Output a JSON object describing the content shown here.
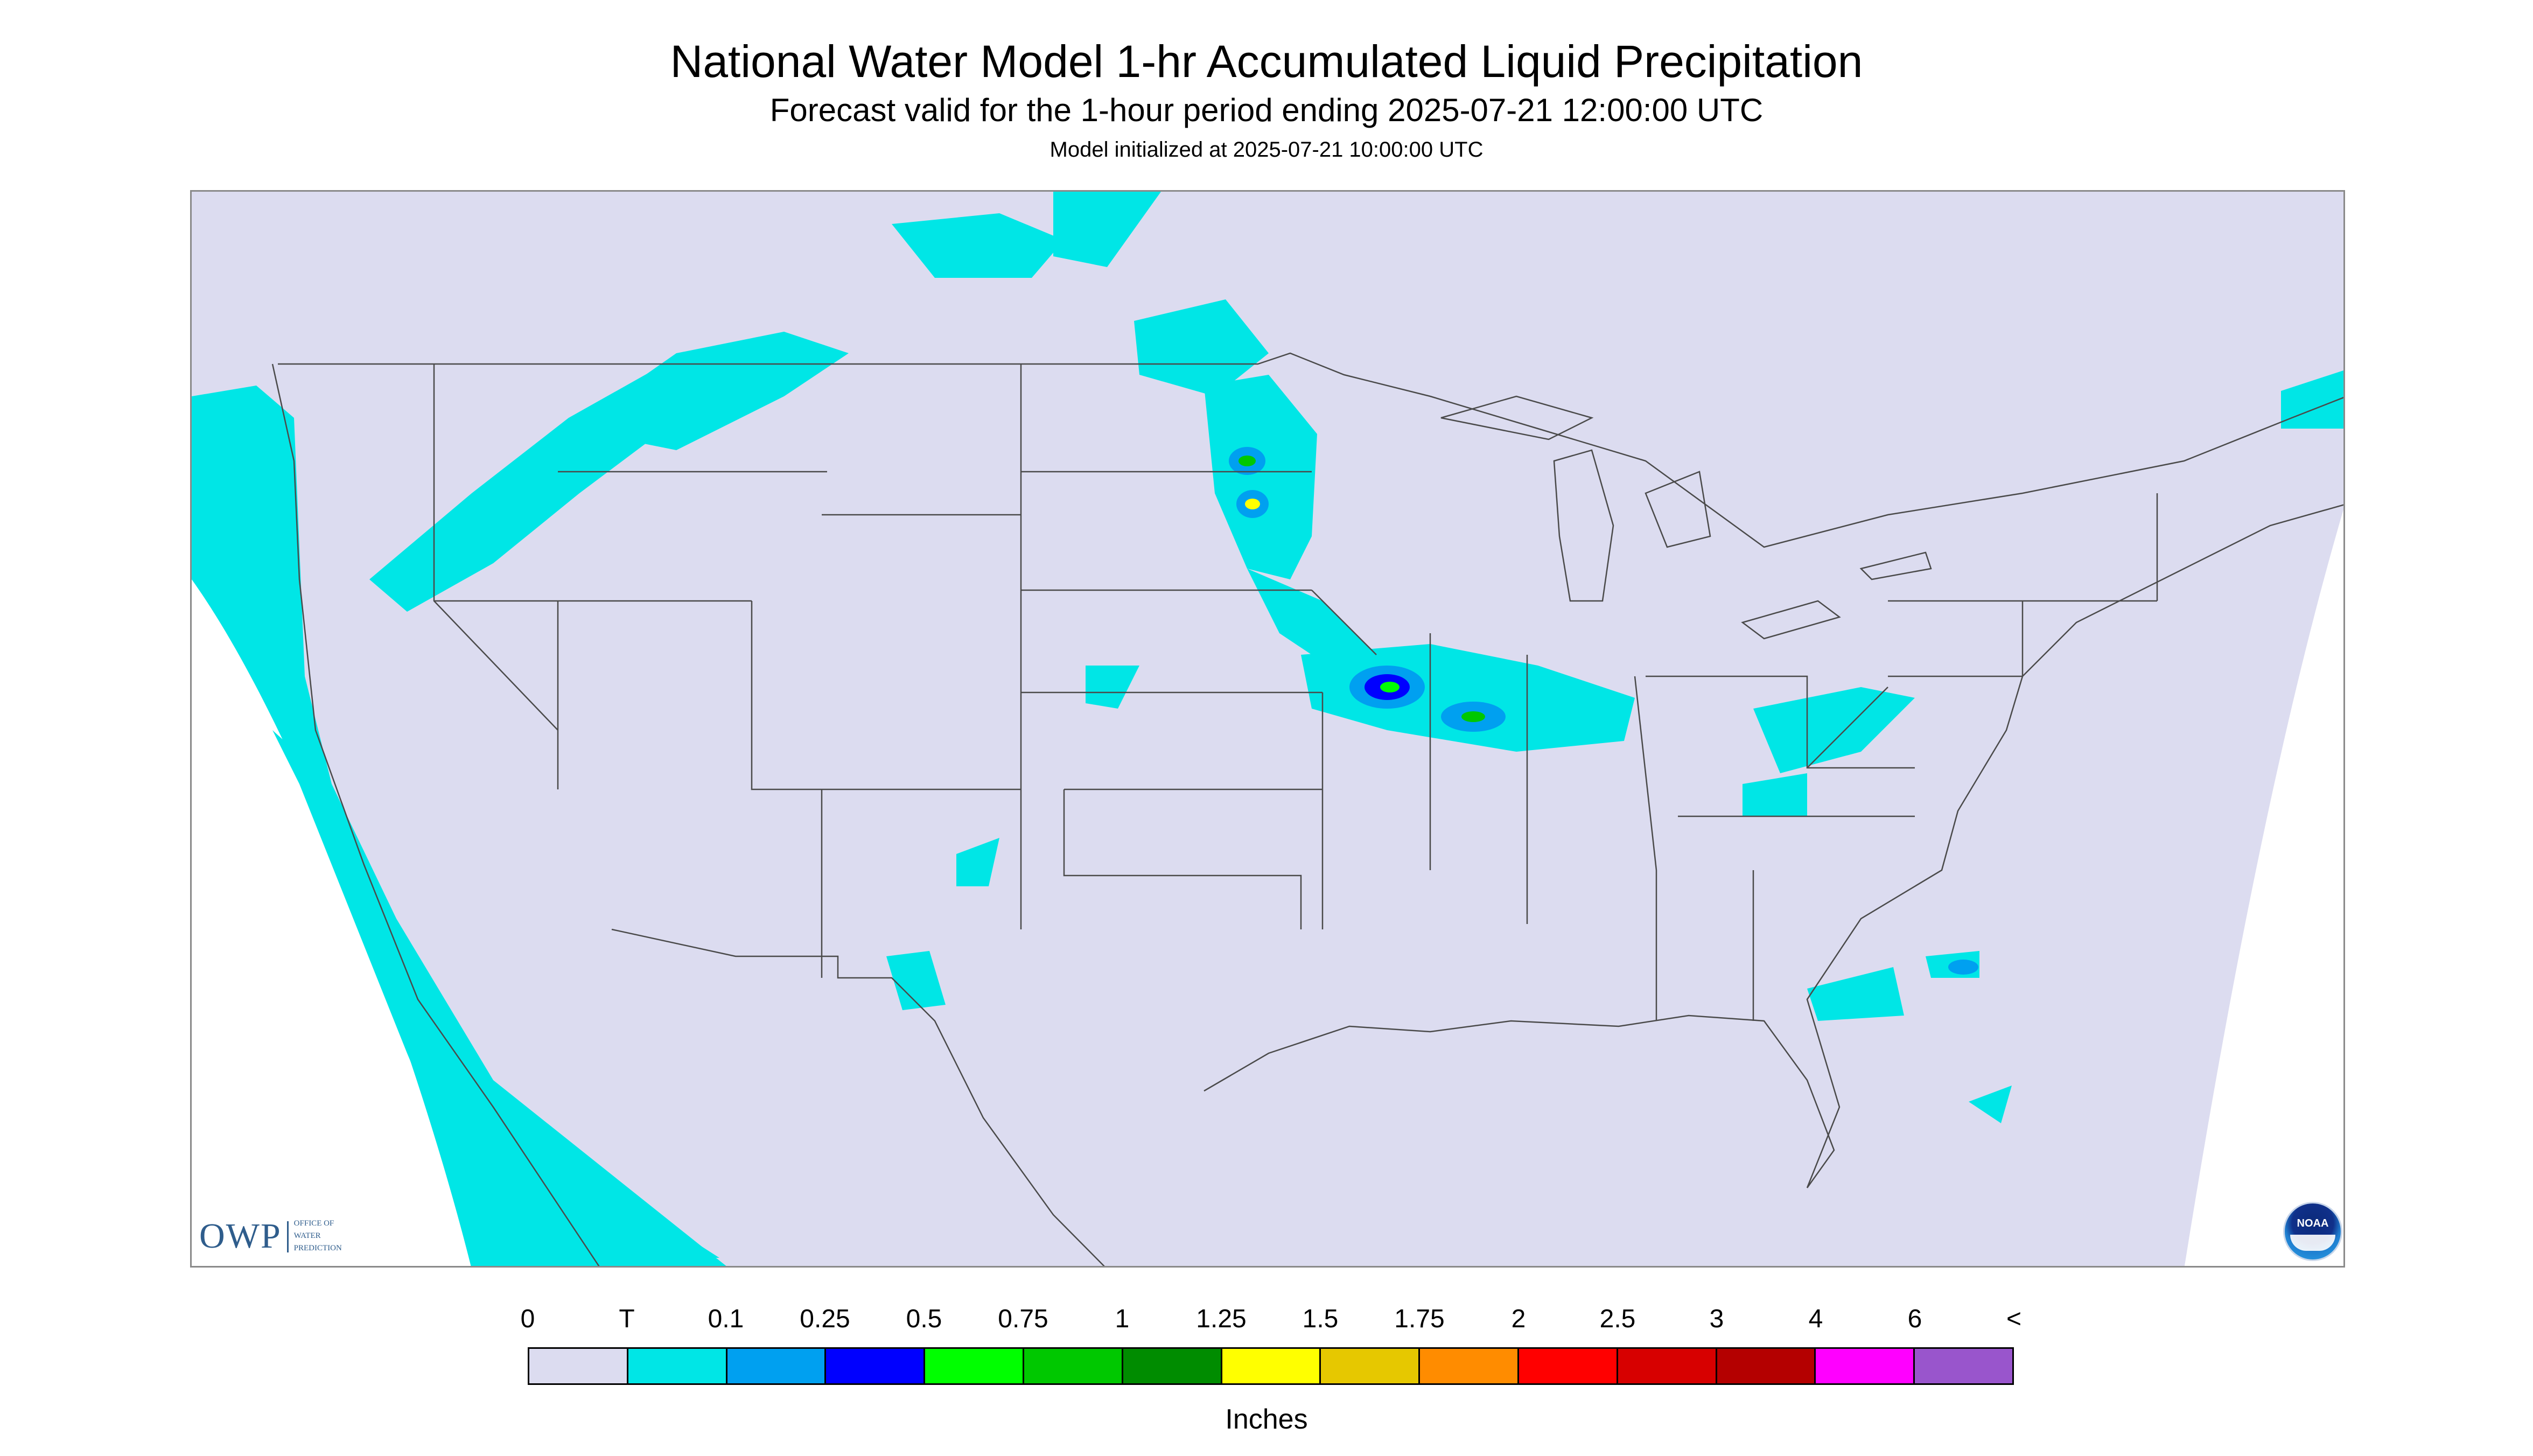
{
  "title": "National Water Model 1-hr Accumulated Liquid Precipitation",
  "subtitle": "Forecast valid for the 1-hour period ending 2025-07-21 12:00:00 UTC",
  "init_line": "Model initialized at 2025-07-21 10:00:00 UTC",
  "logos": {
    "owp_text": "OWP",
    "owp_sub": [
      "OFFICE OF",
      "WATER",
      "PREDICTION"
    ],
    "noaa_text": "NOAA"
  },
  "legend": {
    "labels": [
      "0",
      "T",
      "0.1",
      "0.25",
      "0.5",
      "0.75",
      "1",
      "1.25",
      "1.5",
      "1.75",
      "2",
      "2.5",
      "3",
      "4",
      "6",
      "<"
    ],
    "colors": [
      "#dcdcf0",
      "#00e6e6",
      "#00a0f0",
      "#0000ff",
      "#00ff00",
      "#00c800",
      "#008c00",
      "#ffff00",
      "#e6c800",
      "#ff8c00",
      "#ff0000",
      "#d70000",
      "#b40000",
      "#ff00ff",
      "#9955cc"
    ],
    "units": "Inches"
  },
  "colors": {
    "background": "#dcdcf0",
    "light_precip": "#00e6e6",
    "border_lines": "#4a4a4a"
  }
}
